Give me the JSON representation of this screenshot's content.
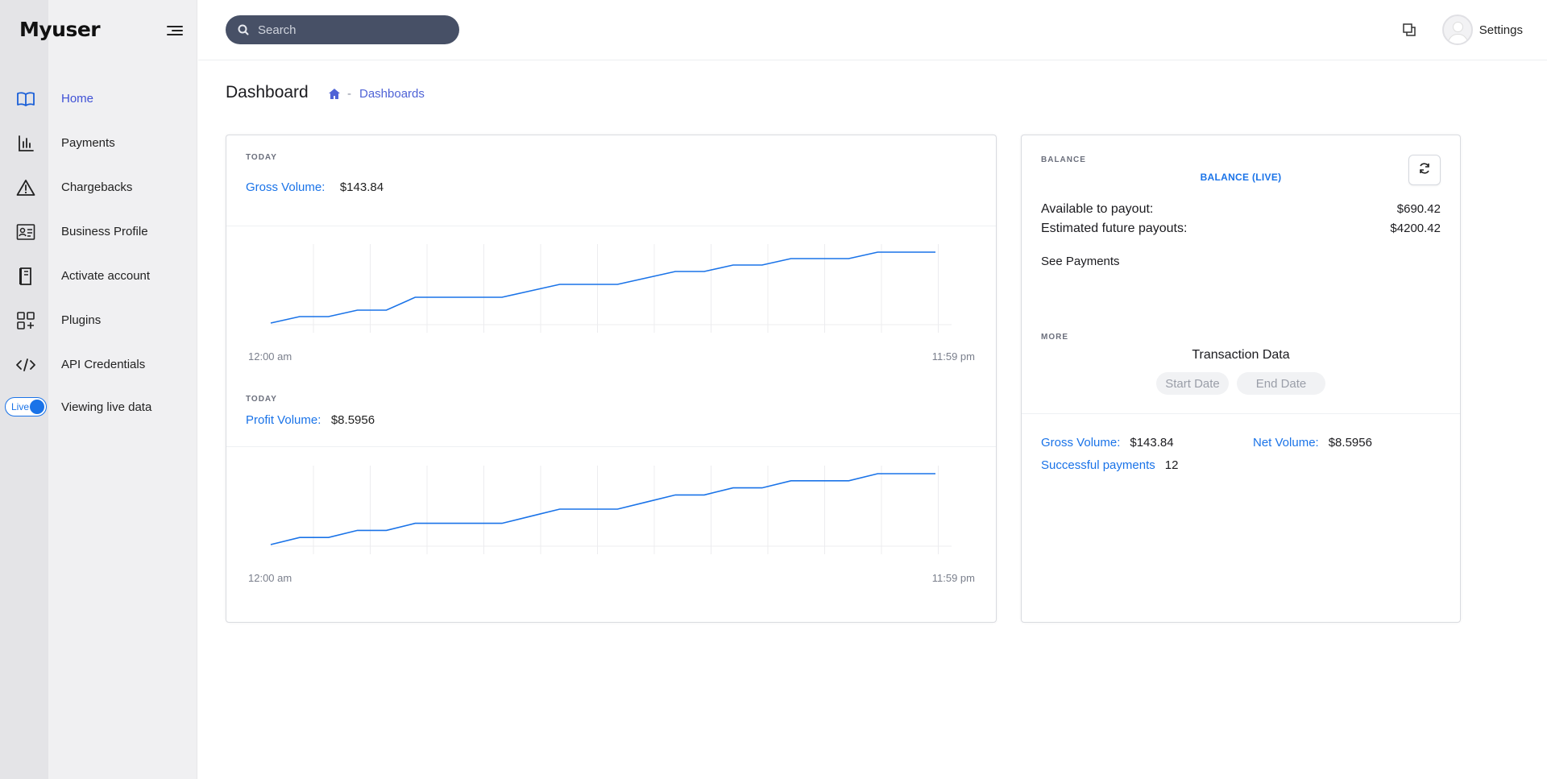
{
  "app": {
    "brand": "Myuser"
  },
  "sidebar": {
    "items": [
      {
        "label": "Home",
        "icon": "book-icon",
        "active": true
      },
      {
        "label": "Payments",
        "icon": "bar-chart-icon"
      },
      {
        "label": "Chargebacks",
        "icon": "warning-icon"
      },
      {
        "label": "Business Profile",
        "icon": "id-card-icon"
      },
      {
        "label": "Activate account",
        "icon": "document-icon"
      },
      {
        "label": "Plugins",
        "icon": "grid-plus-icon"
      },
      {
        "label": "API Credentials",
        "icon": "code-icon"
      }
    ],
    "live": {
      "toggle_text": "Live",
      "label": "Viewing live data"
    }
  },
  "header": {
    "search": {
      "placeholder": "Search"
    },
    "settings_label": "Settings"
  },
  "page": {
    "title": "Dashboard",
    "breadcrumb": {
      "separator": "-",
      "current": "Dashboards"
    }
  },
  "today_card": {
    "gross": {
      "tag": "TODAY",
      "label": "Gross Volume:",
      "value": "$143.84",
      "axis_start": "12:00 am",
      "axis_end": "11:59 pm"
    },
    "profit": {
      "tag": "TODAY",
      "label": "Profit Volume:",
      "value": "$8.5956",
      "axis_start": "12:00 am",
      "axis_end": "11:59 pm"
    }
  },
  "balance_card": {
    "tag": "BALANCE",
    "live_label": "BALANCE (LIVE)",
    "available_label": "Available to payout:",
    "available_value": "$690.42",
    "future_label": "Estimated future payouts:",
    "future_value": "$4200.42",
    "see_payments": "See Payments",
    "more_tag": "MORE",
    "transaction_title": "Transaction Data",
    "start_placeholder": "Start Date",
    "end_placeholder": "End Date",
    "summary": {
      "gross_label": "Gross Volume:",
      "gross_value": "$143.84",
      "net_label": "Net Volume:",
      "net_value": "$8.5956",
      "success_label": "Successful payments",
      "success_value": "12"
    }
  },
  "colors": {
    "accent": "#1a73e8",
    "nav_active": "#3f51d6",
    "search_bg": "#475066"
  },
  "chart_data": [
    {
      "type": "line",
      "series": [
        {
          "values": [
            1,
            2,
            2,
            3,
            3,
            5,
            5,
            5,
            5,
            6,
            7,
            7,
            7,
            8,
            9,
            9,
            10,
            10,
            11,
            11,
            11,
            12,
            12,
            12
          ]
        }
      ]
    },
    {
      "type": "line",
      "series": [
        {
          "values": [
            1,
            2,
            2,
            3,
            3,
            4,
            4,
            4,
            4,
            5,
            6,
            6,
            6,
            7,
            8,
            8,
            9,
            9,
            10,
            10,
            10,
            11,
            11,
            11
          ]
        }
      ]
    }
  ]
}
